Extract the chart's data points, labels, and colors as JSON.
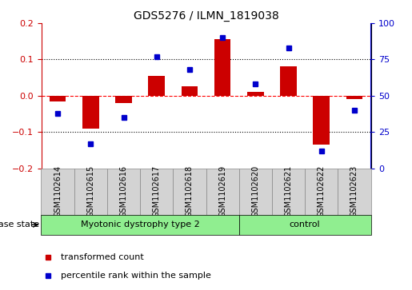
{
  "title": "GDS5276 / ILMN_1819038",
  "samples": [
    "GSM1102614",
    "GSM1102615",
    "GSM1102616",
    "GSM1102617",
    "GSM1102618",
    "GSM1102619",
    "GSM1102620",
    "GSM1102621",
    "GSM1102622",
    "GSM1102623"
  ],
  "red_values": [
    -0.015,
    -0.09,
    -0.02,
    0.055,
    0.025,
    0.155,
    0.01,
    0.08,
    -0.135,
    -0.01
  ],
  "blue_values_pct": [
    38,
    17,
    35,
    77,
    68,
    90,
    58,
    83,
    12,
    40
  ],
  "group_data": [
    {
      "label": "Myotonic dystrophy type 2",
      "xstart": 0,
      "xend": 5,
      "color": "#90EE90"
    },
    {
      "label": "control",
      "xstart": 6,
      "xend": 9,
      "color": "#90EE90"
    }
  ],
  "disease_state_label": "disease state",
  "ylim_left": [
    -0.2,
    0.2
  ],
  "ylim_right": [
    0,
    100
  ],
  "yticks_left": [
    -0.2,
    -0.1,
    0.0,
    0.1,
    0.2
  ],
  "yticks_right": [
    0,
    25,
    50,
    75,
    100
  ],
  "legend_red": "transformed count",
  "legend_blue": "percentile rank within the sample",
  "red_color": "#CC0000",
  "blue_color": "#0000CC",
  "bar_width": 0.5,
  "title_fontsize": 10,
  "tick_fontsize": 8,
  "sample_fontsize": 7,
  "legend_fontsize": 8,
  "cell_bg": "#D3D3D3",
  "cell_edge": "#888888"
}
